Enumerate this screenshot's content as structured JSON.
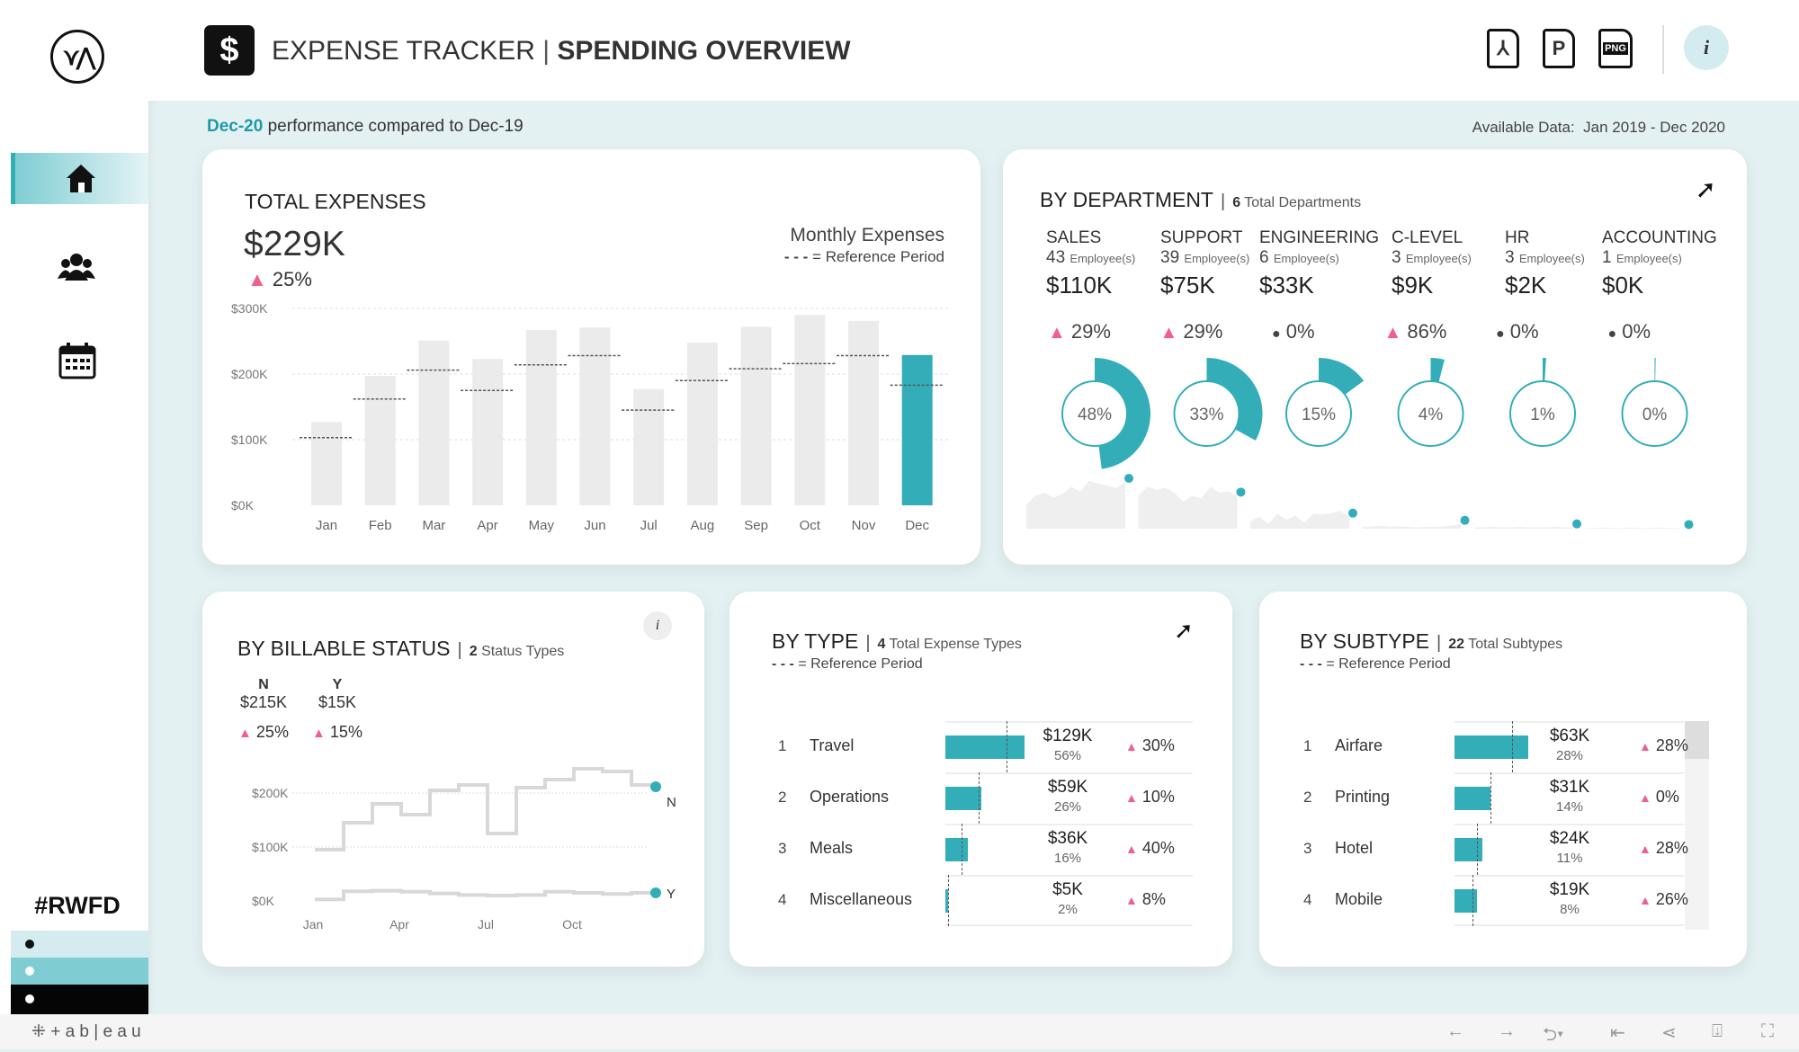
{
  "header": {
    "app_title": "EXPENSE TRACKER",
    "separator": "|",
    "page_title": "SPENDING OVERVIEW",
    "export_pdf": "pdf-icon",
    "export_ppt": "P",
    "export_png": "PNG",
    "info": "i"
  },
  "subheader": {
    "period": "Dec-20",
    "comparison": "performance compared to Dec-19",
    "available": "Available Data:  Jan 2019 - Dec 2020"
  },
  "sidebar": {
    "tag": "#RWFD",
    "items": [
      "home",
      "people",
      "calendar"
    ]
  },
  "colors": {
    "accent": "#33aeb9",
    "up": "#f0608a",
    "bar": "#ebebeb"
  },
  "total": {
    "title": "TOTAL EXPENSES",
    "value": "$229K",
    "change_icon": "▲",
    "change": "25%",
    "legend_title": "Monthly Expenses",
    "legend_ref": "= Reference Period"
  },
  "chart_data": {
    "type": "bar",
    "title": "Monthly Expenses",
    "categories": [
      "Jan",
      "Feb",
      "Mar",
      "Apr",
      "May",
      "Jun",
      "Jul",
      "Aug",
      "Sep",
      "Oct",
      "Nov",
      "Dec"
    ],
    "series": [
      {
        "name": "Dec-20 period",
        "values": [
          127,
          197,
          251,
          223,
          267,
          271,
          177,
          248,
          272,
          290,
          281,
          229
        ]
      },
      {
        "name": "Reference Period",
        "values": [
          103,
          162,
          206,
          175,
          214,
          228,
          145,
          190,
          208,
          216,
          228,
          183
        ]
      }
    ],
    "yticks": [
      "$0K",
      "$100K",
      "$200K",
      "$300K"
    ],
    "ylim": [
      0,
      300
    ],
    "ylabel": "",
    "xlabel": ""
  },
  "department": {
    "title": "BY DEPARTMENT",
    "count": "6",
    "count_label": "Total Departments",
    "emp_label": "Employee(s)",
    "items": [
      {
        "name": "SALES",
        "employees": "43",
        "amount": "$110K",
        "icon": "▲",
        "change": "29%",
        "share": "48%",
        "share_val": 48,
        "trend": [
          40,
          55,
          60,
          52,
          58,
          70,
          62,
          80,
          75,
          72,
          68,
          78
        ]
      },
      {
        "name": "SUPPORT",
        "employees": "39",
        "amount": "$75K",
        "icon": "▲",
        "change": "29%",
        "share": "33%",
        "share_val": 33,
        "trend": [
          55,
          70,
          65,
          68,
          60,
          45,
          55,
          50,
          70,
          60,
          62,
          55
        ]
      },
      {
        "name": "ENGINEERING",
        "employees": "6",
        "amount": "$33K",
        "icon": "●",
        "change": "0%",
        "share": "15%",
        "share_val": 15,
        "trend": [
          12,
          20,
          8,
          25,
          15,
          22,
          10,
          25,
          24,
          26,
          30,
          20
        ]
      },
      {
        "name": "C-LEVEL",
        "employees": "3",
        "amount": "$9K",
        "icon": "▲",
        "change": "86%",
        "share": "4%",
        "share_val": 4,
        "trend": [
          3,
          4,
          5,
          3,
          4,
          3,
          2,
          3,
          3,
          4,
          5,
          8
        ]
      },
      {
        "name": "HR",
        "employees": "3",
        "amount": "$2K",
        "icon": "●",
        "change": "0%",
        "share": "1%",
        "share_val": 1,
        "trend": [
          2,
          2,
          3,
          2,
          2,
          3,
          2,
          2,
          2,
          3,
          2,
          2
        ]
      },
      {
        "name": "ACCOUNTING",
        "employees": "1",
        "amount": "$0K",
        "icon": "●",
        "change": "0%",
        "share": "0%",
        "share_val": 0.3,
        "trend": [
          1,
          1,
          2,
          1,
          1,
          2,
          1,
          1,
          2,
          1,
          1,
          1
        ]
      }
    ]
  },
  "billable": {
    "title": "BY BILLABLE STATUS",
    "count": "2",
    "count_label": "Status Types",
    "info": "i",
    "items": [
      {
        "name": "N",
        "amount": "$215K",
        "icon": "▲",
        "change": "25%"
      },
      {
        "name": "Y",
        "amount": "$15K",
        "icon": "▲",
        "change": "15%"
      }
    ],
    "yticks": [
      "$0K",
      "$100K",
      "$200K"
    ],
    "xticks": [
      "Jan",
      "Apr",
      "Jul",
      "Oct"
    ],
    "series": [
      {
        "name": "N",
        "values": [
          95,
          145,
          180,
          160,
          205,
          215,
          125,
          210,
          225,
          245,
          240,
          215
        ]
      },
      {
        "name": "Y",
        "values": [
          3,
          18,
          19,
          17,
          14,
          11,
          10,
          11,
          17,
          15,
          13,
          15
        ]
      }
    ]
  },
  "type": {
    "title": "BY TYPE",
    "count": "4",
    "count_label": "Total Expense Types",
    "legend_ref": "= Reference Period",
    "rows": [
      {
        "rank": "1",
        "label": "Travel",
        "value": "$129K",
        "share": "56%",
        "icon": "▲",
        "change": "30%",
        "v": 129,
        "ref": 99
      },
      {
        "rank": "2",
        "label": "Operations",
        "value": "$59K",
        "share": "26%",
        "icon": "▲",
        "change": "10%",
        "v": 59,
        "ref": 54
      },
      {
        "rank": "3",
        "label": "Meals",
        "value": "$36K",
        "share": "16%",
        "icon": "▲",
        "change": "40%",
        "v": 36,
        "ref": 26
      },
      {
        "rank": "4",
        "label": "Miscellaneous",
        "value": "$5K",
        "share": "2%",
        "icon": "▲",
        "change": "8%",
        "v": 5,
        "ref": 4.6
      }
    ]
  },
  "subtype": {
    "title": "BY SUBTYPE",
    "count": "22",
    "count_label": "Total Subtypes",
    "legend_ref": "= Reference Period",
    "rows": [
      {
        "rank": "1",
        "label": "Airfare",
        "value": "$63K",
        "share": "28%",
        "icon": "▲",
        "change": "28%",
        "v": 63,
        "ref": 49
      },
      {
        "rank": "2",
        "label": "Printing",
        "value": "$31K",
        "share": "14%",
        "icon": "▲",
        "change": "0%",
        "v": 31,
        "ref": 31
      },
      {
        "rank": "3",
        "label": "Hotel",
        "value": "$24K",
        "share": "11%",
        "icon": "▲",
        "change": "28%",
        "v": 24,
        "ref": 19
      },
      {
        "rank": "4",
        "label": "Mobile",
        "value": "$19K",
        "share": "8%",
        "icon": "▲",
        "change": "26%",
        "v": 19,
        "ref": 15
      }
    ]
  },
  "footer": {
    "brand": "+ a b | e a u"
  }
}
